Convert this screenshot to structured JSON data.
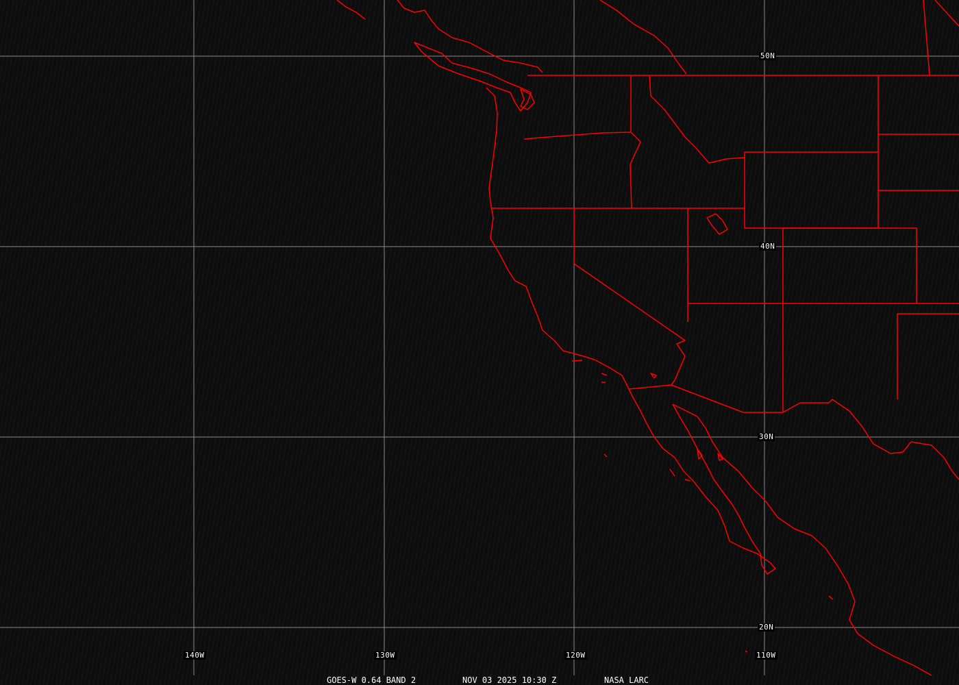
{
  "map": {
    "grid_color": "#8a8a8a",
    "boundary_color": "#ff0000",
    "lat_labels": [
      "50N",
      "40N",
      "30N",
      "20N"
    ],
    "lon_labels": [
      "140W",
      "130W",
      "120W",
      "110W"
    ]
  },
  "footer": {
    "satellite": "GOES-W 0.64 BAND 2",
    "datetime": "NOV 03 2025 10:30 Z",
    "source": "NASA LARC"
  }
}
